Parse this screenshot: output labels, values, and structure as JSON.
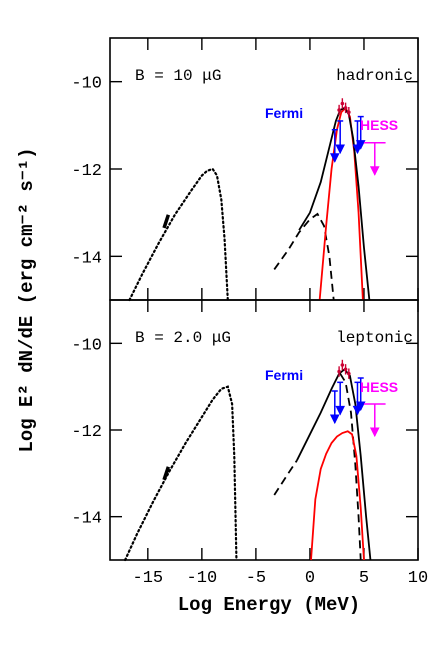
{
  "chart_data": [
    {
      "type": "line",
      "ylabel": "Log E² dN/dE (erg cm⁻² s⁻¹)",
      "annotations": {
        "field": "B = 10 μG",
        "model": "hadronic",
        "fermi": "Fermi",
        "hess": "HESS"
      },
      "xlim": [
        -18.5,
        10
      ],
      "ylim": [
        -15,
        -9
      ],
      "yticks": [
        -10,
        -12,
        -14
      ],
      "series": [
        {
          "style": "dotted",
          "color": "#000000",
          "x": [
            -16.7,
            -15.5,
            -14,
            -12.5,
            -11,
            -10,
            -9.5,
            -9,
            -8.6,
            -8.2,
            -7.9,
            -7.6
          ],
          "values": [
            -15,
            -14.4,
            -13.7,
            -13.05,
            -12.5,
            -12.15,
            -12.04,
            -12,
            -12.15,
            -12.7,
            -13.6,
            -15
          ]
        },
        {
          "style": "thick",
          "color": "#000000",
          "x": [
            -13.5,
            -13.1
          ],
          "values": [
            -13.35,
            -13.05
          ]
        },
        {
          "style": "dashed",
          "color": "#000000",
          "x": [
            -3.3,
            -2,
            -1,
            0,
            0.7,
            1.3,
            1.8,
            2.2
          ],
          "values": [
            -14.3,
            -13.85,
            -13.45,
            -13.15,
            -13.03,
            -13.3,
            -14,
            -15
          ]
        },
        {
          "style": "solid",
          "color": "#ff0000",
          "x": [
            0.9,
            1.5,
            2.0,
            2.5,
            2.9,
            3.3,
            3.7,
            4.1,
            4.5,
            4.9
          ],
          "values": [
            -15,
            -13.3,
            -12,
            -11.1,
            -10.7,
            -10.6,
            -10.8,
            -11.6,
            -13,
            -15
          ]
        },
        {
          "style": "solid",
          "color": "#000000",
          "x": [
            -1,
            0,
            1,
            1.8,
            2.4,
            2.8,
            3.2,
            3.6,
            4.0,
            4.5,
            5.0,
            5.5
          ],
          "values": [
            -13.4,
            -13.0,
            -12.3,
            -11.5,
            -10.9,
            -10.65,
            -10.6,
            -10.75,
            -11.3,
            -12.4,
            -13.8,
            -15
          ]
        },
        {
          "style": "errorbar",
          "color": "#cc0033",
          "x": [
            2.7,
            3.0,
            3.3,
            3.6
          ],
          "values": [
            -10.65,
            -10.5,
            -10.6,
            -10.7
          ],
          "errors": [
            0.12,
            0.12,
            0.12,
            0.12
          ]
        },
        {
          "style": "upper_limit",
          "color": "#0000ff",
          "x": [
            2.3,
            2.8,
            4.4,
            4.7
          ],
          "values": [
            -11.1,
            -10.9,
            -10.9,
            -10.8
          ]
        },
        {
          "style": "upper_limit",
          "color": "#ff00ff",
          "x": [
            6
          ],
          "values": [
            -11.4
          ],
          "xerrors": [
            1
          ]
        }
      ]
    },
    {
      "type": "line",
      "xlabel": "Log Energy (MeV)",
      "annotations": {
        "field": "B = 2.0 μG",
        "model": "leptonic",
        "fermi": "Fermi",
        "hess": "HESS"
      },
      "xlim": [
        -18.5,
        10
      ],
      "ylim": [
        -15,
        -9
      ],
      "xticks": [
        -15,
        -10,
        -5,
        0,
        5,
        10
      ],
      "yticks": [
        -10,
        -12,
        -14
      ],
      "series": [
        {
          "style": "dotted",
          "color": "#000000",
          "x": [
            -17.1,
            -16,
            -14.5,
            -13,
            -11.5,
            -10,
            -9,
            -8.2,
            -7.6,
            -7.2,
            -7.0,
            -6.8
          ],
          "values": [
            -15,
            -14.4,
            -13.65,
            -12.95,
            -12.3,
            -11.7,
            -11.3,
            -11.05,
            -11,
            -11.4,
            -12.6,
            -15
          ]
        },
        {
          "style": "thick",
          "color": "#000000",
          "x": [
            -13.5,
            -13.1
          ],
          "values": [
            -13.15,
            -12.85
          ]
        },
        {
          "style": "dashed",
          "color": "#000000",
          "x": [
            -3.3,
            -2,
            -1.2
          ],
          "values": [
            -13.5,
            -13.0,
            -12.7
          ]
        },
        {
          "style": "dashed",
          "color": "#000000",
          "x": [
            2.8,
            3.3,
            3.8,
            4.2,
            4.5,
            4.7
          ],
          "values": [
            -10.7,
            -10.9,
            -11.6,
            -12.8,
            -14,
            -15
          ]
        },
        {
          "style": "solid",
          "color": "#ff0000",
          "x": [
            0.1,
            0.5,
            1,
            1.5,
            2,
            2.5,
            3,
            3.5,
            3.9,
            4.3,
            4.7,
            5.0
          ],
          "values": [
            -15,
            -13.6,
            -12.9,
            -12.55,
            -12.3,
            -12.15,
            -12.07,
            -12.03,
            -12.1,
            -12.6,
            -13.8,
            -15
          ]
        },
        {
          "style": "solid",
          "color": "#000000",
          "x": [
            -1.2,
            0,
            1,
            2,
            2.7,
            3.2,
            3.7,
            4.2,
            4.7,
            5.2,
            5.6
          ],
          "values": [
            -12.7,
            -12.1,
            -11.6,
            -11.05,
            -10.7,
            -10.6,
            -10.75,
            -11.4,
            -12.6,
            -14,
            -15
          ]
        },
        {
          "style": "errorbar",
          "color": "#cc0033",
          "x": [
            2.7,
            3.0,
            3.3,
            3.6
          ],
          "values": [
            -10.65,
            -10.5,
            -10.6,
            -10.7
          ],
          "errors": [
            0.12,
            0.12,
            0.12,
            0.12
          ]
        },
        {
          "style": "upper_limit",
          "color": "#0000ff",
          "x": [
            2.3,
            2.8,
            4.4,
            4.7
          ],
          "values": [
            -11.1,
            -10.9,
            -10.9,
            -10.8
          ]
        },
        {
          "style": "upper_limit",
          "color": "#ff00ff",
          "x": [
            6
          ],
          "values": [
            -11.4
          ],
          "xerrors": [
            1
          ]
        }
      ]
    }
  ]
}
